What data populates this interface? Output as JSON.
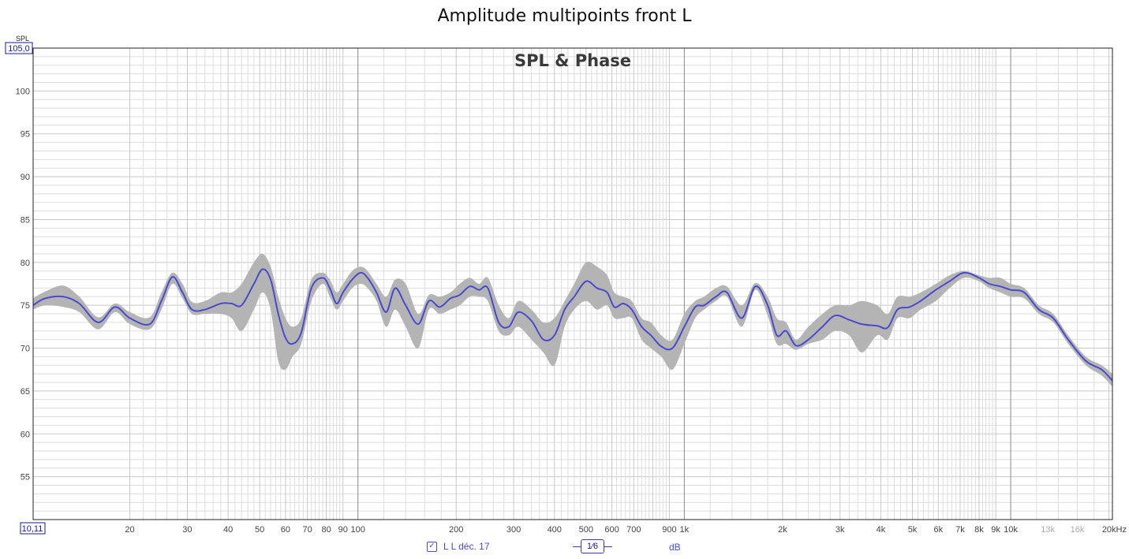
{
  "window_title": "Amplitude multipoints front L",
  "legend": {
    "checked_mark": "✓",
    "label": "L L déc. 17"
  },
  "smoothing_label": "1⁄6",
  "unit_label": "dB",
  "colors": {
    "average_line": "#4a4acc",
    "spread_band": "#b4b4b4",
    "grid_major": "#888888",
    "grid_minor": "#dddddd",
    "grid_mid": "#c8c8c8"
  },
  "chart_data": {
    "type": "line",
    "title": "SPL & Phase",
    "ylabel": "SPL",
    "xscale": "log",
    "xlim": [
      10.11,
      20500
    ],
    "ylim": [
      50,
      105
    ],
    "y_top_readout": "105,0",
    "x_left_readout": "10,11",
    "yticks": [
      55,
      60,
      65,
      70,
      75,
      80,
      85,
      90,
      95,
      100
    ],
    "xticks": [
      {
        "value": 20,
        "label": "20"
      },
      {
        "value": 30,
        "label": "30"
      },
      {
        "value": 40,
        "label": "40"
      },
      {
        "value": 50,
        "label": "50"
      },
      {
        "value": 60,
        "label": "60"
      },
      {
        "value": 70,
        "label": "70"
      },
      {
        "value": 80,
        "label": "80"
      },
      {
        "value": 90,
        "label": "90"
      },
      {
        "value": 100,
        "label": "100"
      },
      {
        "value": 200,
        "label": "200"
      },
      {
        "value": 300,
        "label": "300"
      },
      {
        "value": 400,
        "label": "400"
      },
      {
        "value": 500,
        "label": "500"
      },
      {
        "value": 600,
        "label": "600"
      },
      {
        "value": 700,
        "label": "700"
      },
      {
        "value": 900,
        "label": "900"
      },
      {
        "value": 1000,
        "label": "1k"
      },
      {
        "value": 2000,
        "label": "2k"
      },
      {
        "value": 3000,
        "label": "3k"
      },
      {
        "value": 4000,
        "label": "4k"
      },
      {
        "value": 5000,
        "label": "5k"
      },
      {
        "value": 6000,
        "label": "6k"
      },
      {
        "value": 7000,
        "label": "7k"
      },
      {
        "value": 8000,
        "label": "8k"
      },
      {
        "value": 9000,
        "label": "9k"
      },
      {
        "value": 10000,
        "label": "10k"
      },
      {
        "value": 13000,
        "label": "13k",
        "dim": true
      },
      {
        "value": 16000,
        "label": "16k",
        "dim": true
      },
      {
        "value": 20000,
        "label": "20kHz"
      }
    ],
    "grid": true,
    "series": [
      {
        "name": "L L déc. 17",
        "x": [
          10.11,
          11,
          12.5,
          14,
          16,
          18,
          20,
          23,
          25,
          27,
          29,
          31,
          34,
          38,
          41,
          44,
          48,
          51,
          54,
          57,
          60,
          63,
          67,
          72,
          78,
          82,
          86,
          90,
          96,
          102,
          107,
          114,
          122,
          130,
          140,
          153,
          165,
          178,
          192,
          205,
          220,
          235,
          250,
          270,
          290,
          310,
          340,
          370,
          400,
          430,
          460,
          500,
          540,
          580,
          610,
          650,
          690,
          740,
          790,
          850,
          920,
          1000,
          1080,
          1150,
          1250,
          1350,
          1500,
          1650,
          1800,
          1920,
          2050,
          2200,
          2400,
          2650,
          2900,
          3200,
          3500,
          3900,
          4200,
          4500,
          4900,
          5300,
          5900,
          6500,
          7200,
          8000,
          8600,
          9300,
          10000,
          11000,
          12200,
          13500,
          15000,
          17000,
          19000,
          20500
        ],
        "y": [
          75.0,
          75.8,
          76.0,
          75.2,
          73.0,
          74.8,
          73.5,
          72.8,
          75.5,
          78.3,
          76.5,
          74.5,
          74.5,
          75.2,
          75.2,
          75.0,
          77.5,
          79.2,
          78.0,
          74.0,
          71.2,
          70.5,
          71.8,
          77.0,
          78.2,
          77.0,
          75.2,
          76.5,
          78.0,
          78.8,
          78.2,
          76.5,
          74.2,
          77.0,
          75.0,
          72.8,
          75.5,
          74.8,
          75.8,
          76.2,
          77.2,
          76.8,
          77.0,
          73.0,
          72.5,
          74.2,
          73.2,
          71.0,
          71.5,
          74.5,
          76.0,
          77.8,
          77.0,
          76.5,
          74.8,
          75.2,
          74.5,
          72.5,
          71.5,
          70.2,
          70.0,
          72.5,
          74.8,
          75.0,
          76.0,
          76.5,
          73.5,
          77.2,
          75.0,
          71.5,
          72.0,
          70.3,
          71.0,
          72.5,
          73.8,
          73.3,
          72.8,
          72.6,
          72.4,
          74.5,
          74.8,
          75.5,
          76.8,
          77.8,
          78.8,
          78.2,
          77.5,
          77.2,
          76.8,
          76.5,
          74.5,
          73.5,
          71.0,
          68.5,
          67.5,
          66.2
        ]
      }
    ],
    "spread_band": {
      "x": [
        10.11,
        11,
        12.5,
        14,
        16,
        18,
        20,
        23,
        25,
        27,
        29,
        31,
        34,
        38,
        41,
        44,
        48,
        51,
        54,
        57,
        60,
        63,
        67,
        72,
        78,
        82,
        86,
        90,
        96,
        102,
        107,
        114,
        122,
        130,
        140,
        153,
        165,
        178,
        192,
        205,
        220,
        235,
        250,
        270,
        290,
        310,
        340,
        370,
        400,
        430,
        460,
        500,
        540,
        580,
        610,
        650,
        690,
        740,
        790,
        850,
        920,
        1000,
        1080,
        1150,
        1250,
        1350,
        1500,
        1650,
        1800,
        1920,
        2050,
        2200,
        2400,
        2650,
        2900,
        3200,
        3500,
        3900,
        4200,
        4500,
        4900,
        5300,
        5900,
        6500,
        7200,
        8000,
        8600,
        9300,
        10000,
        11000,
        12200,
        13500,
        15000,
        17000,
        19000,
        20500
      ],
      "upper": [
        75.8,
        76.6,
        77.3,
        76.0,
        73.6,
        75.2,
        74.2,
        73.6,
        76.5,
        78.8,
        77.5,
        75.4,
        75.5,
        76.5,
        76.5,
        77.5,
        80.0,
        81.0,
        79.5,
        76.0,
        73.5,
        72.5,
        73.5,
        78.0,
        78.8,
        78.0,
        76.5,
        77.5,
        79.0,
        79.5,
        79.0,
        77.5,
        76.0,
        78.0,
        77.5,
        74.0,
        76.2,
        76.0,
        76.5,
        77.5,
        78.2,
        77.5,
        78.2,
        75.0,
        73.5,
        75.5,
        74.5,
        73.0,
        73.5,
        75.5,
        77.5,
        80.0,
        79.5,
        78.5,
        76.5,
        76.0,
        75.5,
        73.5,
        73.0,
        71.5,
        71.0,
        74.0,
        75.5,
        76.0,
        77.0,
        77.2,
        75.0,
        77.6,
        76.0,
        73.5,
        73.0,
        71.0,
        72.5,
        74.0,
        75.0,
        75.0,
        75.5,
        75.0,
        74.0,
        76.0,
        76.0,
        76.5,
        77.5,
        78.5,
        79.0,
        78.5,
        78.2,
        78.2,
        77.5,
        77.0,
        75.0,
        74.0,
        71.5,
        69.0,
        68.0,
        67.0
      ],
      "lower": [
        74.5,
        75.0,
        74.8,
        74.2,
        72.2,
        74.2,
        72.8,
        72.2,
        74.5,
        77.5,
        75.8,
        74.0,
        74.0,
        74.0,
        73.5,
        72.0,
        74.5,
        76.5,
        74.5,
        68.5,
        67.5,
        69.0,
        70.5,
        75.5,
        77.5,
        76.0,
        74.5,
        75.5,
        77.0,
        77.5,
        77.0,
        75.5,
        72.5,
        74.5,
        72.5,
        70.0,
        74.5,
        74.0,
        74.5,
        75.0,
        76.0,
        76.0,
        75.5,
        72.0,
        71.5,
        72.5,
        71.0,
        69.5,
        68.0,
        72.5,
        74.5,
        75.5,
        74.5,
        75.0,
        73.5,
        73.5,
        73.5,
        71.0,
        70.0,
        69.0,
        67.5,
        70.5,
        73.5,
        74.5,
        75.5,
        76.0,
        72.5,
        76.8,
        73.8,
        70.5,
        70.5,
        69.8,
        70.5,
        71.0,
        72.0,
        71.5,
        69.5,
        71.5,
        71.0,
        73.5,
        73.5,
        74.5,
        75.5,
        77.0,
        78.2,
        77.8,
        77.0,
        76.5,
        76.0,
        75.8,
        74.0,
        73.0,
        70.5,
        68.0,
        66.8,
        65.5
      ]
    }
  }
}
